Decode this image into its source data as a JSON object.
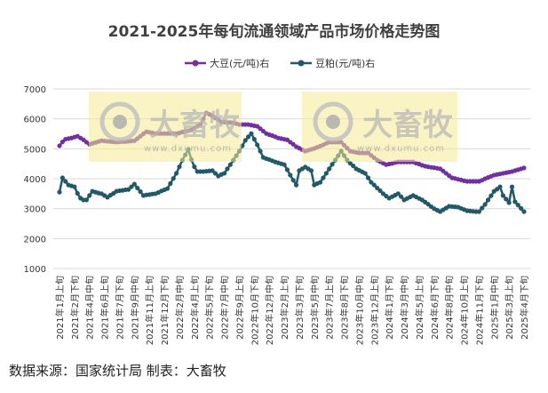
{
  "chart_data": {
    "type": "line",
    "title": "2021-2025年每旬流通领域产品市场价格走势图",
    "xlabel": "",
    "ylabel": "",
    "ylim": [
      1000,
      7000
    ],
    "y_ticks": [
      "1000",
      "2000",
      "3000",
      "4000",
      "5000",
      "6000",
      "7000"
    ],
    "grid": true,
    "legend_position": "top",
    "x_tick_labels": [
      "2021年1月上旬",
      "2021年2月下旬",
      "2021年4月中旬",
      "2021年6月上旬",
      "2021年7月下旬",
      "2021年9月中旬",
      "2021年11月上旬",
      "2021年12月下旬",
      "2022年2月中旬",
      "2022年4月上旬",
      "2022年5月下旬",
      "2022年7月中旬",
      "2022年9月上旬",
      "2022年10月下旬",
      "2022年12月中旬",
      "2023年2月上旬",
      "2023年3月下旬",
      "2023年5月中旬",
      "2023年7月上旬",
      "2023年8月下旬",
      "2023年10月中旬",
      "2023年12月上旬",
      "2024年1月下旬",
      "2024年3月中旬",
      "2024年5月上旬",
      "2024年6月下旬",
      "2024年8月中旬",
      "2024年10月上旬",
      "2024年11月下旬",
      "2025年1月中旬",
      "2025年3月上旬",
      "2025年4月下旬"
    ],
    "series": [
      {
        "name": "大豆(元/吨)右",
        "color": "#7030A0",
        "values": [
          5100,
          5230,
          5320,
          5340,
          5360,
          5390,
          5420,
          5360,
          5300,
          5220,
          5150,
          5180,
          5210,
          5240,
          5270,
          5260,
          5250,
          5240,
          5230,
          5220,
          5230,
          5240,
          5240,
          5250,
          5260,
          5270,
          5340,
          5420,
          5500,
          5570,
          5550,
          5530,
          5510,
          5510,
          5510,
          5510,
          5510,
          5510,
          5510,
          5510,
          5530,
          5560,
          5580,
          5600,
          5630,
          5690,
          5750,
          5810,
          6000,
          6200,
          6150,
          6100,
          6030,
          5970,
          5900,
          5890,
          5880,
          5880,
          5870,
          5840,
          5810,
          5810,
          5810,
          5810,
          5790,
          5770,
          5750,
          5670,
          5590,
          5510,
          5470,
          5440,
          5400,
          5360,
          5340,
          5320,
          5300,
          5220,
          5150,
          5070,
          5020,
          4970,
          4920,
          4950,
          4980,
          5010,
          5050,
          5090,
          5130,
          5180,
          5220,
          5220,
          5220,
          5220,
          5220,
          5120,
          5020,
          4920,
          4900,
          4880,
          4860,
          4860,
          4860,
          4860,
          4780,
          4700,
          4620,
          4570,
          4520,
          4470,
          4490,
          4510,
          4540,
          4560,
          4560,
          4560,
          4560,
          4560,
          4560,
          4520,
          4490,
          4450,
          4420,
          4400,
          4380,
          4370,
          4350,
          4330,
          4260,
          4180,
          4100,
          4030,
          4010,
          3980,
          3960,
          3930,
          3910,
          3910,
          3910,
          3910,
          3910,
          3950,
          4000,
          4040,
          4080,
          4120,
          4140,
          4160,
          4180,
          4200,
          4220,
          4240,
          4270,
          4300,
          4330,
          4360
        ]
      },
      {
        "name": "豆粕(元/吨)右",
        "color": "#215968",
        "values": [
          3550,
          4030,
          3910,
          3790,
          3760,
          3730,
          3510,
          3350,
          3290,
          3290,
          3440,
          3580,
          3550,
          3520,
          3500,
          3440,
          3380,
          3450,
          3510,
          3580,
          3600,
          3610,
          3630,
          3640,
          3730,
          3820,
          3690,
          3570,
          3440,
          3460,
          3470,
          3490,
          3500,
          3540,
          3590,
          3630,
          3670,
          3840,
          4010,
          4180,
          4400,
          4620,
          4800,
          4980,
          4640,
          4400,
          4240,
          4240,
          4240,
          4250,
          4260,
          4270,
          4180,
          4090,
          4140,
          4180,
          4330,
          4470,
          4620,
          4770,
          4920,
          5100,
          5280,
          5400,
          5510,
          5320,
          5130,
          4920,
          4710,
          4670,
          4640,
          4600,
          4560,
          4530,
          4500,
          4470,
          4300,
          4120,
          3950,
          3790,
          4270,
          4330,
          4390,
          4330,
          4270,
          3790,
          3840,
          3880,
          4030,
          4180,
          4330,
          4480,
          4620,
          4770,
          4920,
          4770,
          4620,
          4520,
          4430,
          4330,
          4280,
          4230,
          4180,
          4030,
          3880,
          3790,
          3690,
          3600,
          3500,
          3420,
          3350,
          3400,
          3450,
          3500,
          3400,
          3290,
          3340,
          3390,
          3440,
          3390,
          3340,
          3290,
          3220,
          3150,
          3070,
          3000,
          2950,
          2900,
          2960,
          3020,
          3080,
          3070,
          3060,
          3050,
          3010,
          2970,
          2930,
          2920,
          2910,
          2900,
          2900,
          3020,
          3140,
          3290,
          3430,
          3580,
          3650,
          3730,
          3440,
          3320,
          3200,
          3730,
          3230,
          3120,
          3010,
          2900
        ]
      }
    ]
  },
  "watermark": {
    "brand": "大畜牧",
    "url": "www.dxumu.com"
  },
  "footer": "数据来源：国家统计局  制表：大畜牧"
}
